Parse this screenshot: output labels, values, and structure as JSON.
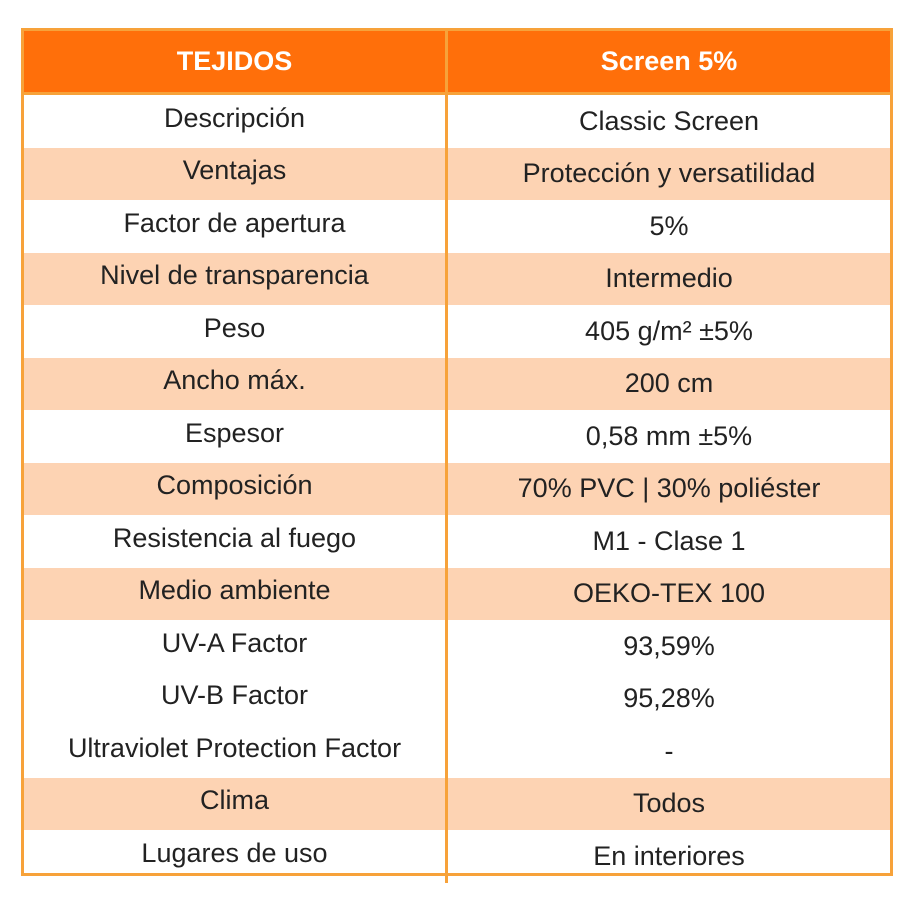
{
  "table": {
    "header": {
      "left": "TEJIDOS",
      "right": "Screen 5%"
    },
    "rows": [
      {
        "label": "Descripción",
        "value": "Classic Screen",
        "shaded": false
      },
      {
        "label": "Ventajas",
        "value": "Protección y versatilidad",
        "shaded": true
      },
      {
        "label": "Factor de apertura",
        "value": "5%",
        "shaded": false
      },
      {
        "label": "Nivel de transparencia",
        "value": "Intermedio",
        "shaded": true
      },
      {
        "label": "Peso",
        "value": "405 g/m² ±5%",
        "shaded": false
      },
      {
        "label": "Ancho máx.",
        "value": "200 cm",
        "shaded": true
      },
      {
        "label": "Espesor",
        "value": "0,58 mm ±5%",
        "shaded": false
      },
      {
        "label": "Composición",
        "value": "70% PVC | 30% poliéster",
        "shaded": true
      },
      {
        "label": "Resistencia al fuego",
        "value": "M1 - Clase 1",
        "shaded": false
      },
      {
        "label": "Medio ambiente",
        "value": "OEKO-TEX 100",
        "shaded": true
      },
      {
        "label": "UV-A Factor",
        "value": "93,59%",
        "shaded": false
      },
      {
        "label": "UV-B Factor",
        "value": "95,28%",
        "shaded": false
      },
      {
        "label": "Ultraviolet Protection Factor",
        "value": "-",
        "shaded": false
      },
      {
        "label": "Clima",
        "value": "Todos",
        "shaded": true
      },
      {
        "label": "Lugares de uso",
        "value": "En interiores",
        "shaded": false
      }
    ]
  },
  "colors": {
    "header_background": "#ff6f0a",
    "border": "#f7a23a",
    "shaded_row": "#fdd3b3",
    "text": "#222222",
    "header_text": "#ffffff"
  }
}
